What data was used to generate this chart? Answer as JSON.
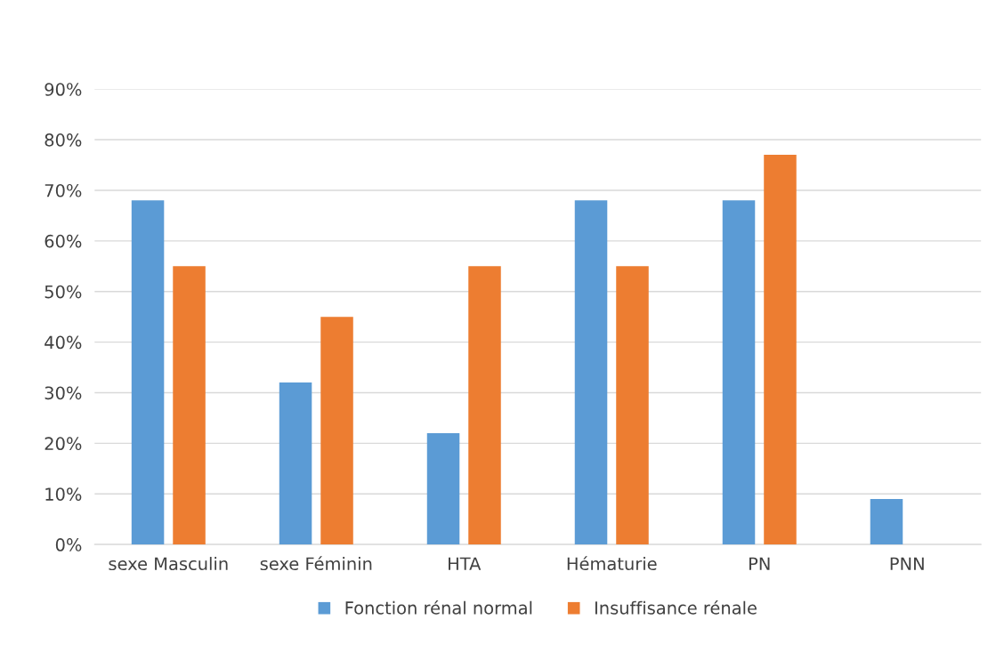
{
  "chart_data": {
    "type": "bar",
    "categories": [
      "sexe Masculin",
      "sexe Féminin",
      "HTA",
      "Hématurie",
      "PN",
      "PNN"
    ],
    "series": [
      {
        "name": "Fonction rénal normal",
        "color": "#5b9bd5",
        "values": [
          68,
          32,
          22,
          68,
          68,
          9
        ]
      },
      {
        "name": "Insuffisance rénale",
        "color": "#ed7d31",
        "values": [
          55,
          45,
          55,
          55,
          77,
          0
        ]
      }
    ],
    "ylim": [
      0,
      90
    ],
    "yticks": [
      {
        "value": 0,
        "label": "0%"
      },
      {
        "value": 10,
        "label": "10%"
      },
      {
        "value": 20,
        "label": "20%"
      },
      {
        "value": 30,
        "label": "30%"
      },
      {
        "value": 40,
        "label": "40%"
      },
      {
        "value": 50,
        "label": "50%"
      },
      {
        "value": 60,
        "label": "60%"
      },
      {
        "value": 70,
        "label": "70%"
      },
      {
        "value": 80,
        "label": "80%"
      },
      {
        "value": 90,
        "label": "90%"
      }
    ],
    "grid": "y",
    "legend": "bottom"
  }
}
